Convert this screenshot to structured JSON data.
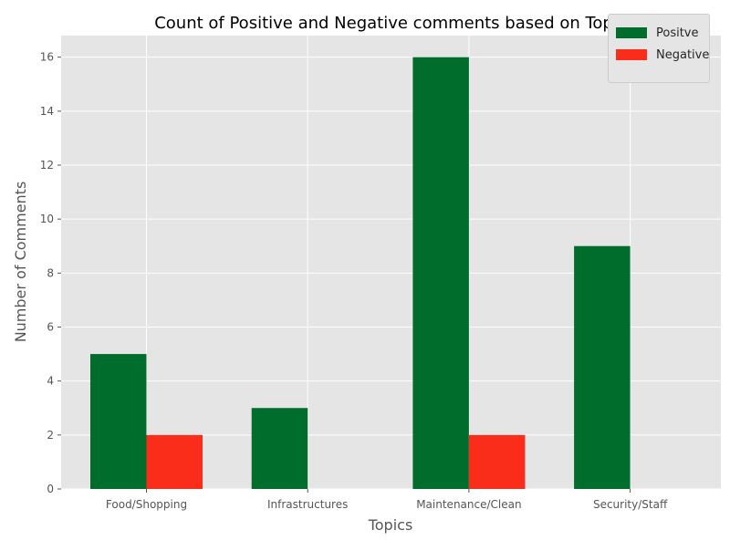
{
  "chart_data": {
    "type": "bar",
    "title": "Count of Positive and Negative comments based on Topic",
    "xlabel": "Topics",
    "ylabel": "Number of Comments",
    "categories": [
      "Food/Shopping",
      "Infrastructures",
      "Maintenance/Clean",
      "Security/Staff"
    ],
    "series": [
      {
        "name": "Positve",
        "values": [
          5,
          3,
          16,
          9
        ],
        "color": "#006d2c"
      },
      {
        "name": "Negative",
        "values": [
          2,
          0,
          2,
          0
        ],
        "color": "#fa2d1a"
      }
    ],
    "ylim": [
      0,
      16.8
    ],
    "yticks": [
      "0",
      "2",
      "4",
      "6",
      "8",
      "10",
      "12",
      "14",
      "16"
    ],
    "grid": true,
    "legend_position": "top-right",
    "style": "ggplot",
    "background_color": "#e5e5e5"
  }
}
